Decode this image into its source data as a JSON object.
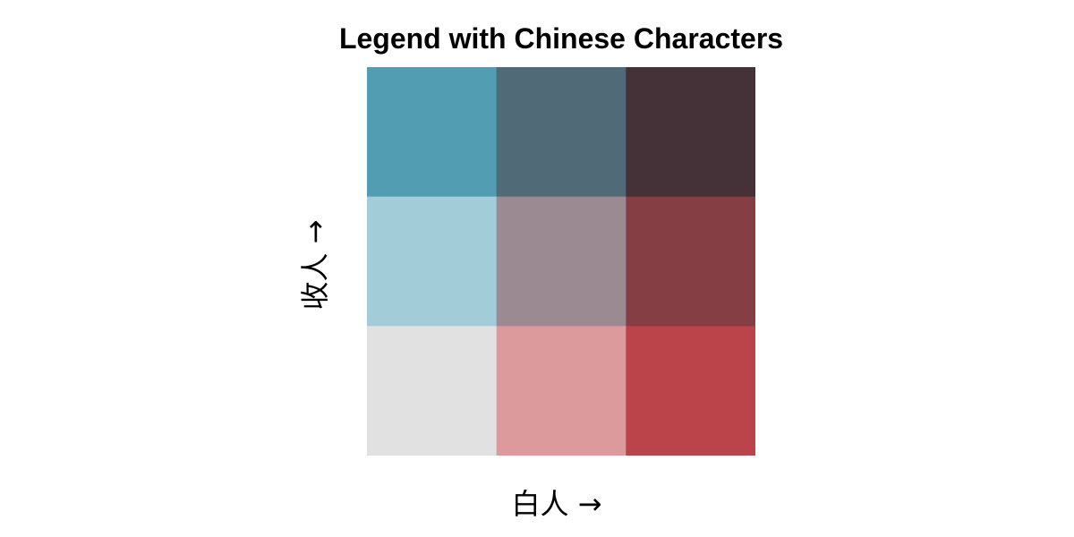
{
  "chart_data": {
    "type": "heatmap",
    "title": "Legend with Chinese Characters",
    "xlabel": "白人 →",
    "ylabel": "收人 →",
    "grid": {
      "columns": 3,
      "rows": 3,
      "row_order": "top-to-bottom",
      "column_order": "left-to-right",
      "colors": [
        [
          "#529DB1",
          "#506B77",
          "#443238"
        ],
        [
          "#A3CCD9",
          "#9C8A92",
          "#863E45"
        ],
        [
          "#E1E1E1",
          "#DC9A9C",
          "#BB434A"
        ]
      ]
    }
  }
}
